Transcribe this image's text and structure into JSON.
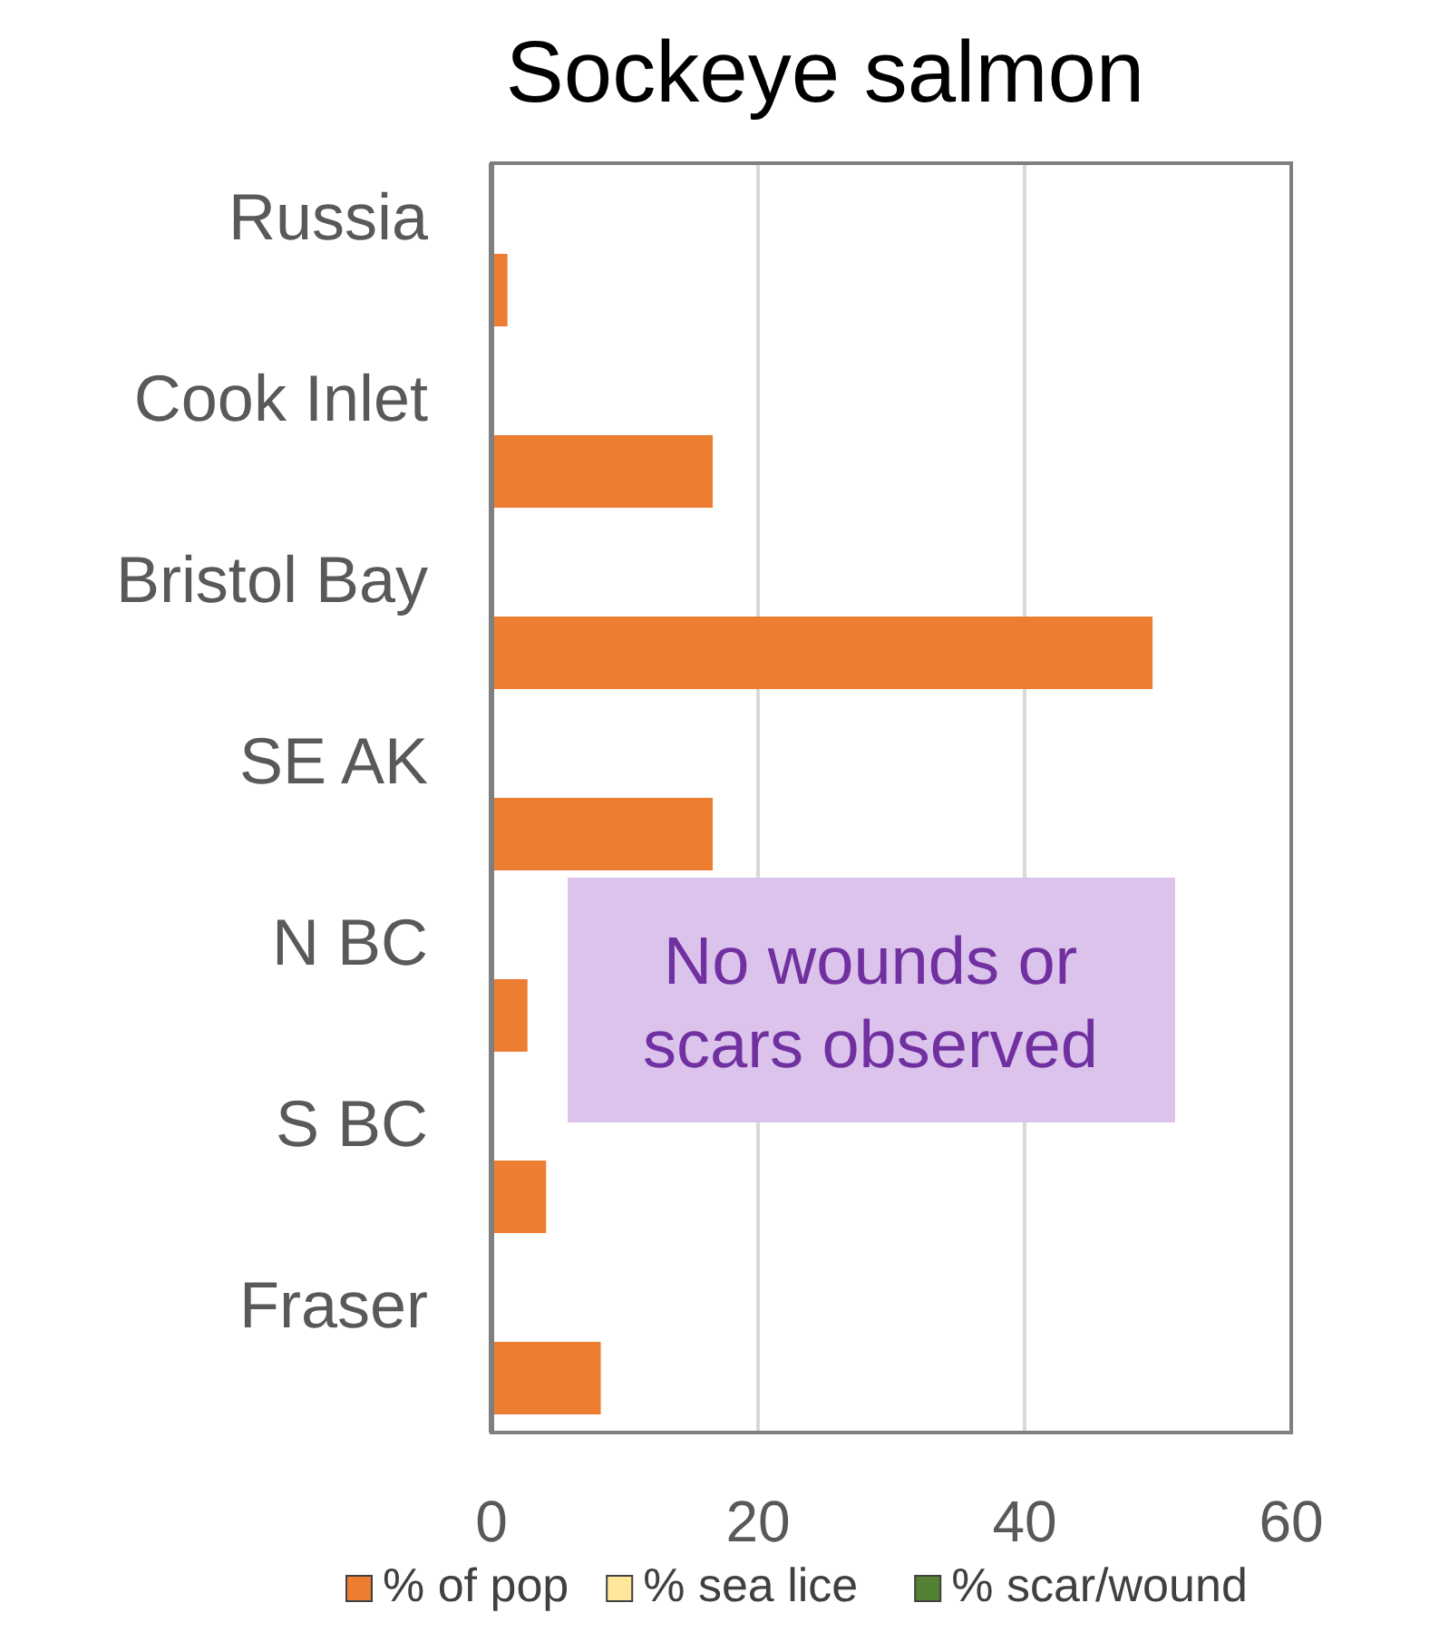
{
  "chart_data": {
    "type": "bar",
    "orientation": "horizontal",
    "title": "Sockeye salmon",
    "categories": [
      "Russia",
      "Cook Inlet",
      "Bristol Bay",
      "SE AK",
      "N BC",
      "S BC",
      "Fraser"
    ],
    "series": [
      {
        "name": "% of pop",
        "color": "#ed7d31",
        "values": [
          1.2,
          16.6,
          49.6,
          16.6,
          2.7,
          4.1,
          8.2
        ]
      },
      {
        "name": "% sea lice",
        "color": "#ffe699",
        "values": [
          0,
          0,
          0,
          0,
          0,
          0,
          0
        ]
      },
      {
        "name": "% scar/wound",
        "color": "#548235",
        "values": [
          0,
          0,
          0,
          0,
          0,
          0,
          0
        ]
      }
    ],
    "xlim": [
      0,
      60
    ],
    "xticks": [
      0,
      20,
      40,
      60
    ],
    "grid": "x",
    "legend": "bottom",
    "annotations": [
      "No wounds or scars observed"
    ]
  }
}
